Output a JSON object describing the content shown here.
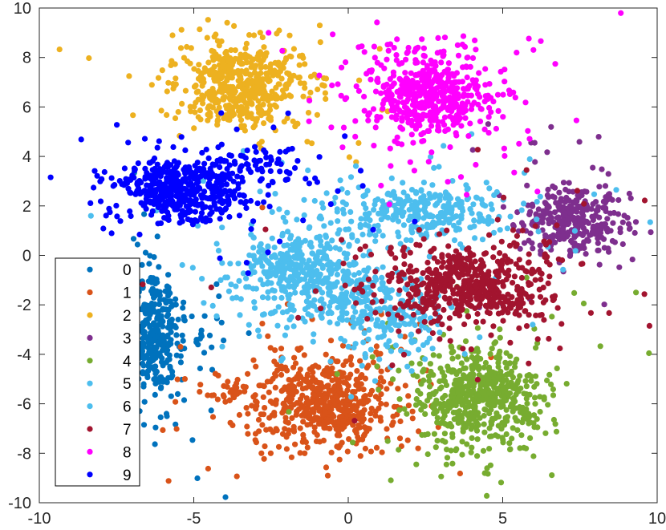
{
  "chart_data": {
    "type": "scatter",
    "title": "",
    "xlabel": "",
    "ylabel": "",
    "xlim": [
      -10,
      10
    ],
    "ylim": [
      -10,
      10
    ],
    "xticks": [
      -10,
      -5,
      0,
      5,
      10
    ],
    "yticks": [
      -10,
      -8,
      -6,
      -4,
      -2,
      0,
      2,
      4,
      6,
      8,
      10
    ],
    "grid": false,
    "legend_position": "bottom-left",
    "series": [
      {
        "name": "0",
        "color": "#0072BD",
        "clusters": [
          {
            "cx": -6.3,
            "cy": -3.2,
            "sx": 0.4,
            "sy": 1.3,
            "n": 300
          },
          {
            "cx": -5.5,
            "cy": -3.4,
            "sx": 0.9,
            "sy": 0.8,
            "n": 60
          }
        ]
      },
      {
        "name": "1",
        "color": "#D95319",
        "clusters": [
          {
            "cx": -0.8,
            "cy": -5.9,
            "sx": 1.2,
            "sy": 1.0,
            "n": 620
          },
          {
            "cx": -3.8,
            "cy": -5.5,
            "sx": 0.3,
            "sy": 0.2,
            "n": 25
          }
        ]
      },
      {
        "name": "2",
        "color": "#EDB120",
        "clusters": [
          {
            "cx": -3.4,
            "cy": 6.9,
            "sx": 1.0,
            "sy": 0.8,
            "n": 560
          }
        ]
      },
      {
        "name": "3",
        "color": "#7E2F8E",
        "clusters": [
          {
            "cx": 7.2,
            "cy": 1.5,
            "sx": 0.8,
            "sy": 0.7,
            "n": 340
          }
        ]
      },
      {
        "name": "4",
        "color": "#77AC30",
        "clusters": [
          {
            "cx": 4.2,
            "cy": -5.8,
            "sx": 1.0,
            "sy": 1.0,
            "n": 620
          }
        ]
      },
      {
        "name": "5",
        "color": "#4DBEEE",
        "clusters": [
          {
            "cx": -1.8,
            "cy": -0.6,
            "sx": 1.0,
            "sy": 0.8,
            "n": 380
          },
          {
            "cx": 0.0,
            "cy": -1.6,
            "sx": 0.6,
            "sy": 0.7,
            "n": 150
          }
        ]
      },
      {
        "name": "6",
        "color": "#4DBEEE",
        "clusters": [
          {
            "cx": 2.3,
            "cy": 1.8,
            "sx": 1.4,
            "sy": 0.6,
            "n": 340
          },
          {
            "cx": 1.8,
            "cy": -2.6,
            "sx": 0.8,
            "sy": 0.8,
            "n": 140
          }
        ]
      },
      {
        "name": "7",
        "color": "#A2142F",
        "clusters": [
          {
            "cx": 3.9,
            "cy": -1.2,
            "sx": 1.3,
            "sy": 0.8,
            "n": 600
          }
        ]
      },
      {
        "name": "8",
        "color": "#FF00FF",
        "clusters": [
          {
            "cx": 2.7,
            "cy": 6.6,
            "sx": 1.0,
            "sy": 0.8,
            "n": 560
          }
        ]
      },
      {
        "name": "9",
        "color": "#0000FF",
        "clusters": [
          {
            "cx": -5.3,
            "cy": 2.7,
            "sx": 1.1,
            "sy": 0.6,
            "n": 480
          },
          {
            "cx": -3.0,
            "cy": 3.5,
            "sx": 0.9,
            "sy": 0.5,
            "n": 90
          }
        ]
      }
    ],
    "background_noise": 0.12
  }
}
